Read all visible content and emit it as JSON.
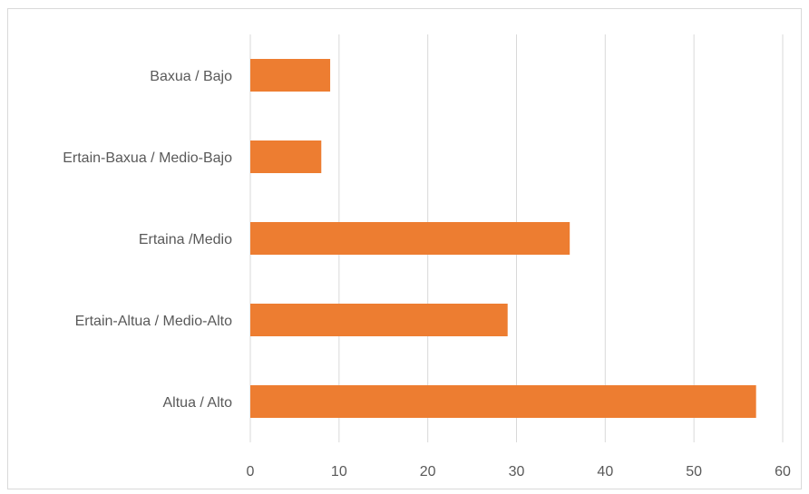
{
  "chart_data": {
    "type": "bar",
    "orientation": "horizontal",
    "categories": [
      "Baxua / Bajo",
      "Ertain-Baxua / Medio-Bajo",
      "Ertaina /Medio",
      "Ertain-Altua / Medio-Alto",
      "Altua / Alto"
    ],
    "values": [
      9,
      8,
      36,
      29,
      57
    ],
    "title": "",
    "xlabel": "",
    "ylabel": "",
    "xlim": [
      0,
      60
    ],
    "xticks": [
      "0",
      "10",
      "20",
      "30",
      "40",
      "50",
      "60"
    ],
    "grid": "vertical",
    "legend": "none",
    "bar_color": "#ED7D31",
    "grid_color": "#D9D9D9",
    "label_color": "#595959"
  }
}
